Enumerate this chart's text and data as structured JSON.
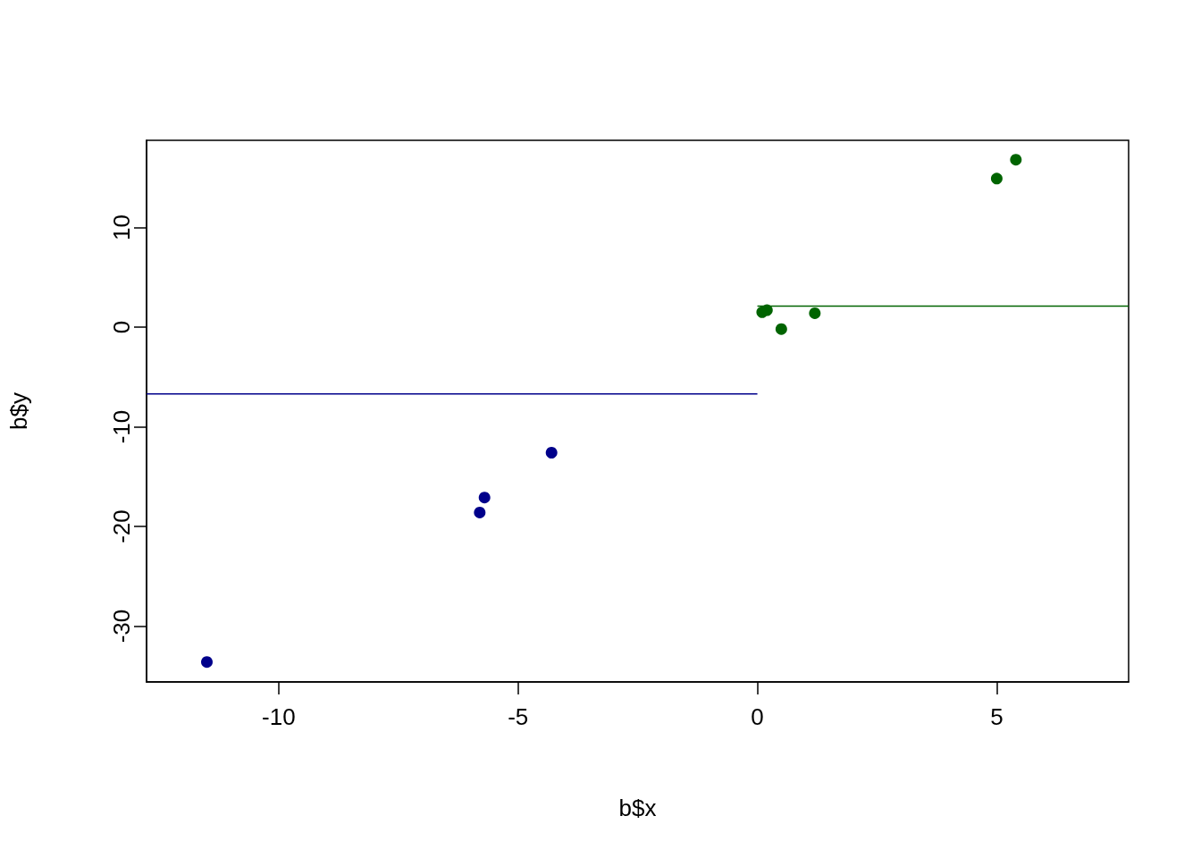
{
  "chart_data": {
    "type": "scatter",
    "xlabel": "b$x",
    "ylabel": "b$y",
    "xlim": [
      -12.76,
      7.755
    ],
    "ylim": [
      -35.6,
      18.74
    ],
    "xticks": [
      -10,
      -5,
      0,
      5
    ],
    "yticks": [
      -30,
      -20,
      -10,
      0,
      10
    ],
    "series": [
      {
        "color": "#00008b",
        "marker": "circle",
        "x": [
          -11.5,
          -5.8,
          -5.7,
          -4.3
        ],
        "values": [
          -33.6,
          -18.6,
          -17.1,
          -12.6
        ]
      },
      {
        "color": "#006400",
        "marker": "circle",
        "x": [
          0.1,
          0.2,
          0.5,
          1.2,
          5.0,
          5.4
        ],
        "values": [
          1.5,
          1.7,
          -0.2,
          1.4,
          14.9,
          16.8
        ]
      },
      {
        "type": "line",
        "color": "#00008b",
        "marker": "none",
        "x": [
          -12.76,
          0
        ],
        "values": [
          -6.7,
          -6.7
        ]
      },
      {
        "type": "line",
        "color": "#006400",
        "marker": "none",
        "x": [
          0,
          7.755
        ],
        "values": [
          2.1,
          2.1
        ]
      }
    ]
  }
}
